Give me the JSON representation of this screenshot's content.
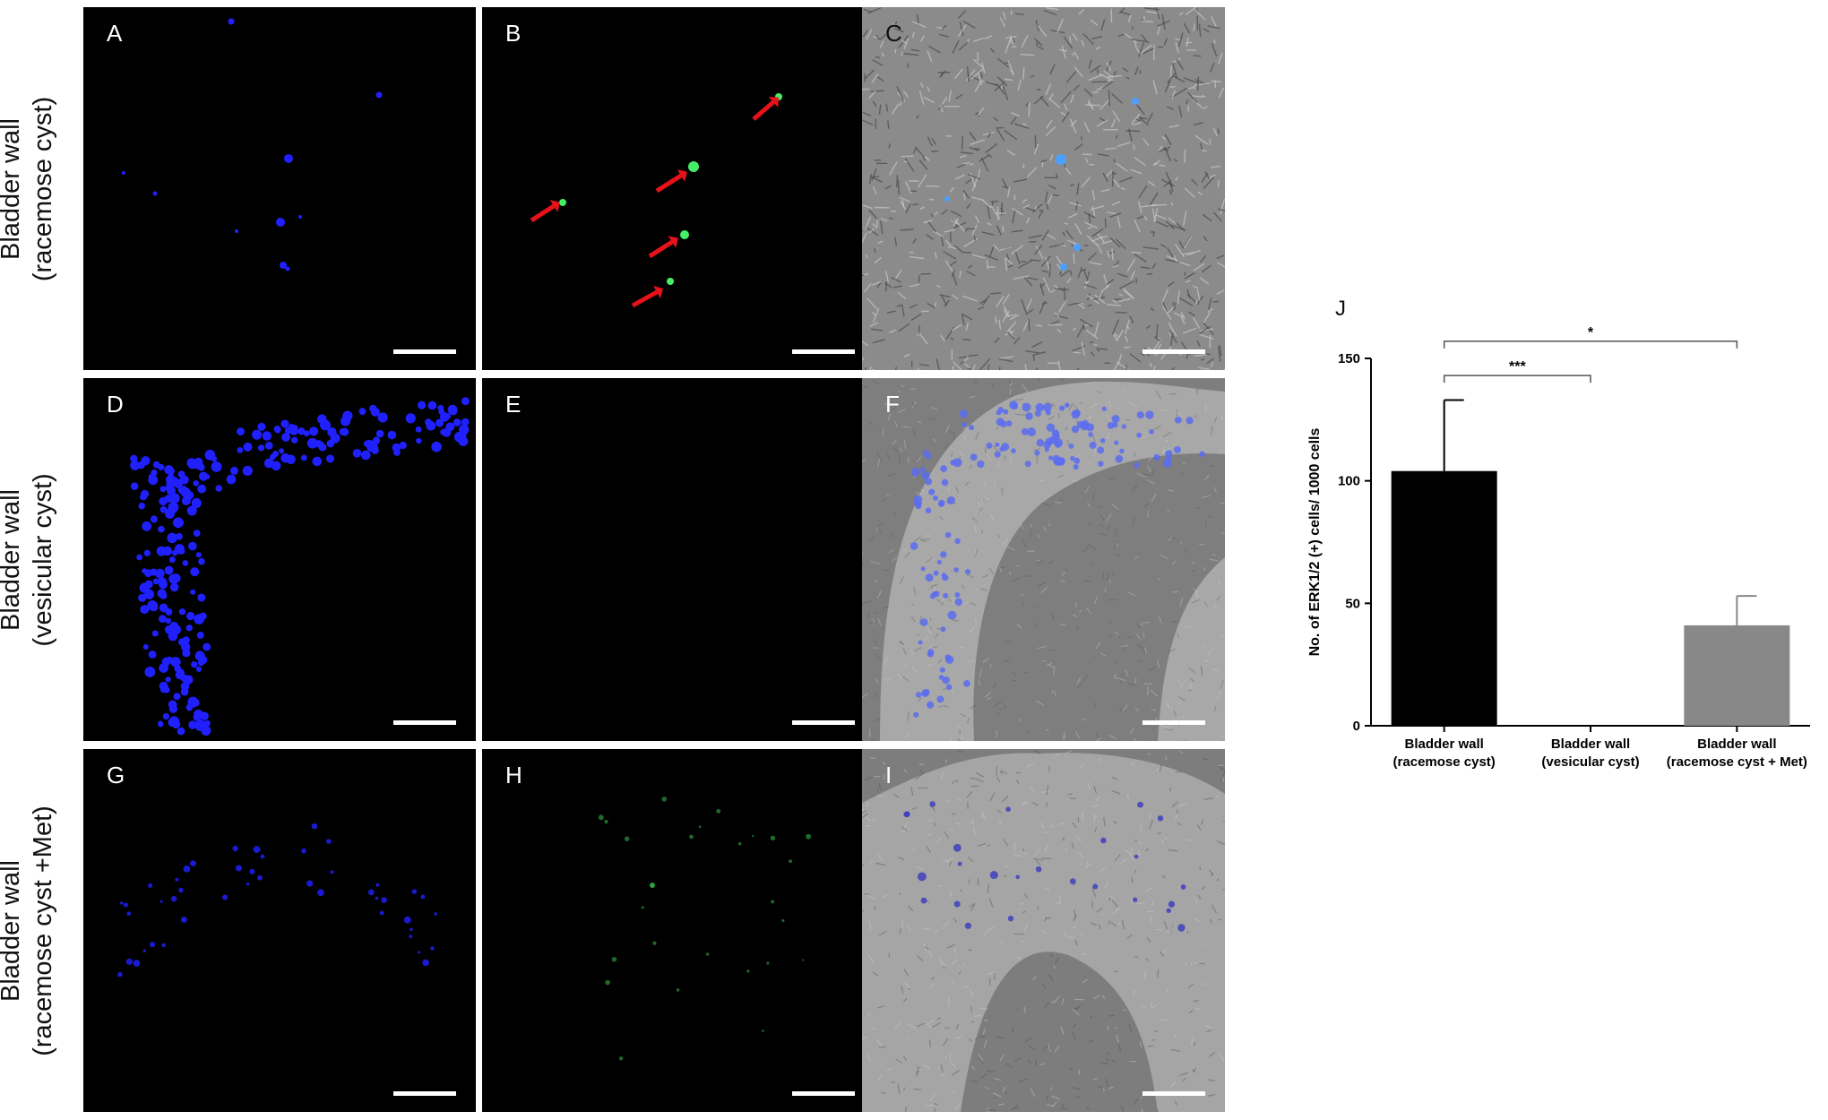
{
  "row_labels": [
    {
      "line1": "Bladder wall",
      "line2": "(racemose cyst)"
    },
    {
      "line1": "Bladder wall",
      "line2": "(vesicular cyst)"
    },
    {
      "line1": "Bladder wall",
      "line2": "(racemose cyst +Met)"
    }
  ],
  "panels": [
    {
      "letter": "A",
      "kind": "blue-sparse"
    },
    {
      "letter": "B",
      "kind": "green-arrows"
    },
    {
      "letter": "C",
      "kind": "dic-tissue"
    },
    {
      "letter": "D",
      "kind": "blue-dense"
    },
    {
      "letter": "E",
      "kind": "empty"
    },
    {
      "letter": "F",
      "kind": "dic-arc"
    },
    {
      "letter": "G",
      "kind": "blue-faint"
    },
    {
      "letter": "H",
      "kind": "green-faint"
    },
    {
      "letter": "I",
      "kind": "dic-arch"
    }
  ],
  "colors": {
    "nuclei_blue": "#2020ff",
    "signal_green": "#44ee66",
    "arrow_red": "#e8121a",
    "dic_gray": "#8b8b8b",
    "bar_black": "#000000",
    "bar_gray": "#888888"
  },
  "chart_data": {
    "panel_letter": "J",
    "type": "bar",
    "ylabel": "No. of ERK1/2 (+) cells/ 1000 cells",
    "ylim": [
      0,
      150
    ],
    "yticks": [
      0,
      50,
      100,
      150
    ],
    "categories": [
      {
        "line1": "Bladder wall",
        "line2": "(racemose cyst)"
      },
      {
        "line1": "Bladder wall",
        "line2": "(vesicular cyst)"
      },
      {
        "line1": "Bladder wall",
        "line2": "(racemose cyst + Met)"
      }
    ],
    "values": [
      104,
      0,
      41
    ],
    "errors": [
      29,
      0,
      12
    ],
    "bar_colors": [
      "#000000",
      "#ffffff",
      "#888888"
    ],
    "significance": [
      {
        "from": 0,
        "to": 1,
        "label": "***"
      },
      {
        "from": 0,
        "to": 2,
        "label": "*"
      }
    ]
  }
}
